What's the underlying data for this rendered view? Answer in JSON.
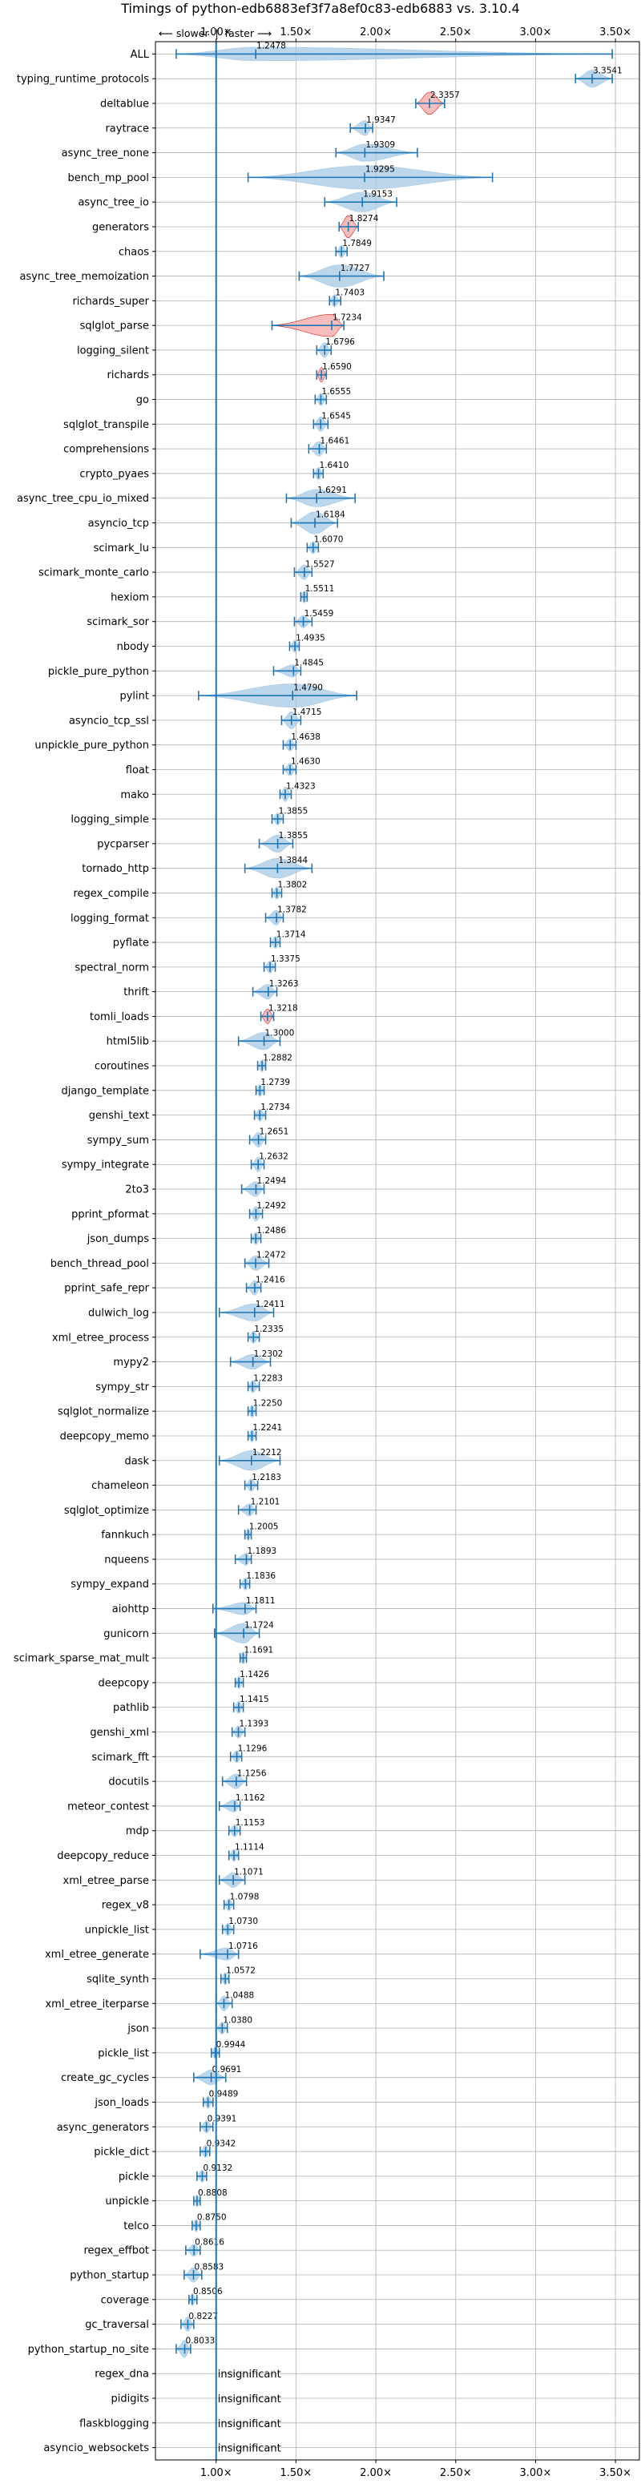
{
  "chart_data": {
    "type": "violin",
    "title": "Timings of python-edb6883ef3f7a8ef0c83-edb6883 vs. 3.10.4",
    "direction_note": "⟵ slower  |  faster ⟶",
    "x_ticks": [
      "1.00×",
      "1.50×",
      "2.00×",
      "2.50×",
      "3.00×",
      "3.50×"
    ],
    "x_tick_values": [
      1.0,
      1.5,
      2.0,
      2.5,
      3.0,
      3.5
    ],
    "xlim": [
      0.62,
      3.65
    ],
    "grid": true,
    "colors": {
      "faster": "#1f77b4",
      "violin": "#a6c8e4",
      "regression": "#f4a6a6",
      "regression_edge": "#d62728",
      "grid": "#b0b0b0"
    },
    "insignificant_label": "insignificant",
    "benchmarks": [
      {
        "name": "ALL",
        "value": 1.2478,
        "lo": 0.75,
        "hi": 3.48,
        "width": 0.55,
        "regression": false
      },
      {
        "name": "typing_runtime_protocols",
        "value": 3.3541,
        "lo": 3.25,
        "hi": 3.48,
        "width": 0.7,
        "regression": false
      },
      {
        "name": "deltablue",
        "value": 2.3357,
        "lo": 2.25,
        "hi": 2.43,
        "width": 0.9,
        "regression": true
      },
      {
        "name": "raytrace",
        "value": 1.9347,
        "lo": 1.84,
        "hi": 1.98,
        "width": 0.6,
        "regression": false
      },
      {
        "name": "async_tree_none",
        "value": 1.9309,
        "lo": 1.75,
        "hi": 2.26,
        "width": 0.7,
        "regression": false
      },
      {
        "name": "bench_mp_pool",
        "value": 1.9295,
        "lo": 1.2,
        "hi": 2.73,
        "width": 0.95,
        "regression": false
      },
      {
        "name": "async_tree_io",
        "value": 1.9153,
        "lo": 1.68,
        "hi": 2.13,
        "width": 0.8,
        "regression": false
      },
      {
        "name": "generators",
        "value": 1.8274,
        "lo": 1.77,
        "hi": 1.89,
        "width": 0.9,
        "regression": true
      },
      {
        "name": "chaos",
        "value": 1.7849,
        "lo": 1.75,
        "hi": 1.82,
        "width": 0.5,
        "regression": false
      },
      {
        "name": "async_tree_memoization",
        "value": 1.7727,
        "lo": 1.52,
        "hi": 2.05,
        "width": 0.9,
        "regression": false
      },
      {
        "name": "richards_super",
        "value": 1.7403,
        "lo": 1.71,
        "hi": 1.78,
        "width": 0.5,
        "regression": false
      },
      {
        "name": "sqlglot_parse",
        "value": 1.7234,
        "lo": 1.35,
        "hi": 1.8,
        "width": 0.9,
        "regression": true
      },
      {
        "name": "logging_silent",
        "value": 1.6796,
        "lo": 1.63,
        "hi": 1.72,
        "width": 0.6,
        "regression": false
      },
      {
        "name": "richards",
        "value": 1.659,
        "lo": 1.63,
        "hi": 1.69,
        "width": 0.6,
        "regression": true
      },
      {
        "name": "go",
        "value": 1.6555,
        "lo": 1.62,
        "hi": 1.69,
        "width": 0.5,
        "regression": false
      },
      {
        "name": "sqlglot_transpile",
        "value": 1.6545,
        "lo": 1.61,
        "hi": 1.7,
        "width": 0.6,
        "regression": false
      },
      {
        "name": "comprehensions",
        "value": 1.6461,
        "lo": 1.58,
        "hi": 1.69,
        "width": 0.6,
        "regression": false
      },
      {
        "name": "crypto_pyaes",
        "value": 1.641,
        "lo": 1.61,
        "hi": 1.67,
        "width": 0.5,
        "regression": false
      },
      {
        "name": "async_tree_cpu_io_mixed",
        "value": 1.6291,
        "lo": 1.44,
        "hi": 1.87,
        "width": 0.7,
        "regression": false
      },
      {
        "name": "asyncio_tcp",
        "value": 1.6184,
        "lo": 1.47,
        "hi": 1.76,
        "width": 0.9,
        "regression": false
      },
      {
        "name": "scimark_lu",
        "value": 1.607,
        "lo": 1.57,
        "hi": 1.64,
        "width": 0.5,
        "regression": false
      },
      {
        "name": "scimark_monte_carlo",
        "value": 1.5527,
        "lo": 1.49,
        "hi": 1.6,
        "width": 0.6,
        "regression": false
      },
      {
        "name": "hexiom",
        "value": 1.5511,
        "lo": 1.53,
        "hi": 1.57,
        "width": 0.5,
        "regression": false
      },
      {
        "name": "scimark_sor",
        "value": 1.5459,
        "lo": 1.49,
        "hi": 1.6,
        "width": 0.5,
        "regression": false
      },
      {
        "name": "nbody",
        "value": 1.4935,
        "lo": 1.46,
        "hi": 1.52,
        "width": 0.5,
        "regression": false
      },
      {
        "name": "pickle_pure_python",
        "value": 1.4845,
        "lo": 1.36,
        "hi": 1.53,
        "width": 0.5,
        "regression": false
      },
      {
        "name": "pylint",
        "value": 1.479,
        "lo": 0.89,
        "hi": 1.88,
        "width": 0.95,
        "regression": false
      },
      {
        "name": "asyncio_tcp_ssl",
        "value": 1.4715,
        "lo": 1.41,
        "hi": 1.53,
        "width": 0.7,
        "regression": false
      },
      {
        "name": "unpickle_pure_python",
        "value": 1.4638,
        "lo": 1.42,
        "hi": 1.5,
        "width": 0.5,
        "regression": false
      },
      {
        "name": "float",
        "value": 1.463,
        "lo": 1.42,
        "hi": 1.5,
        "width": 0.5,
        "regression": false
      },
      {
        "name": "mako",
        "value": 1.4323,
        "lo": 1.4,
        "hi": 1.47,
        "width": 0.6,
        "regression": false
      },
      {
        "name": "logging_simple",
        "value": 1.3855,
        "lo": 1.35,
        "hi": 1.42,
        "width": 0.5,
        "regression": false
      },
      {
        "name": "pycparser",
        "value": 1.3855,
        "lo": 1.27,
        "hi": 1.48,
        "width": 0.7,
        "regression": false
      },
      {
        "name": "tornado_http",
        "value": 1.3844,
        "lo": 1.18,
        "hi": 1.6,
        "width": 0.8,
        "regression": false
      },
      {
        "name": "regex_compile",
        "value": 1.3802,
        "lo": 1.35,
        "hi": 1.41,
        "width": 0.5,
        "regression": false
      },
      {
        "name": "logging_format",
        "value": 1.3782,
        "lo": 1.31,
        "hi": 1.42,
        "width": 0.6,
        "regression": false
      },
      {
        "name": "pyflate",
        "value": 1.3714,
        "lo": 1.34,
        "hi": 1.4,
        "width": 0.5,
        "regression": false
      },
      {
        "name": "spectral_norm",
        "value": 1.3375,
        "lo": 1.3,
        "hi": 1.37,
        "width": 0.5,
        "regression": false
      },
      {
        "name": "thrift",
        "value": 1.3263,
        "lo": 1.23,
        "hi": 1.38,
        "width": 0.6,
        "regression": false
      },
      {
        "name": "tomli_loads",
        "value": 1.3218,
        "lo": 1.28,
        "hi": 1.36,
        "width": 0.6,
        "regression": true
      },
      {
        "name": "html5lib",
        "value": 1.3,
        "lo": 1.14,
        "hi": 1.4,
        "width": 0.7,
        "regression": false
      },
      {
        "name": "coroutines",
        "value": 1.2882,
        "lo": 1.26,
        "hi": 1.31,
        "width": 0.5,
        "regression": false
      },
      {
        "name": "django_template",
        "value": 1.2739,
        "lo": 1.25,
        "hi": 1.3,
        "width": 0.5,
        "regression": false
      },
      {
        "name": "genshi_text",
        "value": 1.2734,
        "lo": 1.24,
        "hi": 1.31,
        "width": 0.5,
        "regression": false
      },
      {
        "name": "sympy_sum",
        "value": 1.2651,
        "lo": 1.21,
        "hi": 1.31,
        "width": 0.6,
        "regression": false
      },
      {
        "name": "sympy_integrate",
        "value": 1.2632,
        "lo": 1.22,
        "hi": 1.3,
        "width": 0.6,
        "regression": false
      },
      {
        "name": "2to3",
        "value": 1.2494,
        "lo": 1.16,
        "hi": 1.3,
        "width": 0.6,
        "regression": false
      },
      {
        "name": "pprint_pformat",
        "value": 1.2492,
        "lo": 1.21,
        "hi": 1.29,
        "width": 0.6,
        "regression": false
      },
      {
        "name": "json_dumps",
        "value": 1.2486,
        "lo": 1.22,
        "hi": 1.28,
        "width": 0.5,
        "regression": false
      },
      {
        "name": "bench_thread_pool",
        "value": 1.2472,
        "lo": 1.18,
        "hi": 1.33,
        "width": 0.6,
        "regression": false
      },
      {
        "name": "pprint_safe_repr",
        "value": 1.2416,
        "lo": 1.19,
        "hi": 1.28,
        "width": 0.6,
        "regression": false
      },
      {
        "name": "dulwich_log",
        "value": 1.2411,
        "lo": 1.02,
        "hi": 1.36,
        "width": 0.7,
        "regression": false
      },
      {
        "name": "xml_etree_process",
        "value": 1.2335,
        "lo": 1.2,
        "hi": 1.27,
        "width": 0.5,
        "regression": false
      },
      {
        "name": "mypy2",
        "value": 1.2302,
        "lo": 1.09,
        "hi": 1.34,
        "width": 0.6,
        "regression": false
      },
      {
        "name": "sympy_str",
        "value": 1.2283,
        "lo": 1.2,
        "hi": 1.27,
        "width": 0.5,
        "regression": false
      },
      {
        "name": "sqlglot_normalize",
        "value": 1.225,
        "lo": 1.2,
        "hi": 1.25,
        "width": 0.5,
        "regression": false
      },
      {
        "name": "deepcopy_memo",
        "value": 1.2241,
        "lo": 1.2,
        "hi": 1.25,
        "width": 0.5,
        "regression": false
      },
      {
        "name": "dask",
        "value": 1.2212,
        "lo": 1.02,
        "hi": 1.4,
        "width": 0.8,
        "regression": false
      },
      {
        "name": "chameleon",
        "value": 1.2183,
        "lo": 1.18,
        "hi": 1.26,
        "width": 0.5,
        "regression": false
      },
      {
        "name": "sqlglot_optimize",
        "value": 1.2101,
        "lo": 1.14,
        "hi": 1.25,
        "width": 0.5,
        "regression": false
      },
      {
        "name": "fannkuch",
        "value": 1.2005,
        "lo": 1.18,
        "hi": 1.22,
        "width": 0.5,
        "regression": false
      },
      {
        "name": "nqueens",
        "value": 1.1893,
        "lo": 1.12,
        "hi": 1.22,
        "width": 0.5,
        "regression": false
      },
      {
        "name": "sympy_expand",
        "value": 1.1836,
        "lo": 1.15,
        "hi": 1.21,
        "width": 0.5,
        "regression": false
      },
      {
        "name": "aiohttp",
        "value": 1.1811,
        "lo": 0.98,
        "hi": 1.25,
        "width": 0.5,
        "regression": false
      },
      {
        "name": "gunicorn",
        "value": 1.1724,
        "lo": 0.99,
        "hi": 1.27,
        "width": 0.8,
        "regression": false
      },
      {
        "name": "scimark_sparse_mat_mult",
        "value": 1.1691,
        "lo": 1.15,
        "hi": 1.19,
        "width": 0.5,
        "regression": false
      },
      {
        "name": "deepcopy",
        "value": 1.1426,
        "lo": 1.12,
        "hi": 1.17,
        "width": 0.5,
        "regression": false
      },
      {
        "name": "pathlib",
        "value": 1.1415,
        "lo": 1.11,
        "hi": 1.17,
        "width": 0.5,
        "regression": false
      },
      {
        "name": "genshi_xml",
        "value": 1.1393,
        "lo": 1.1,
        "hi": 1.18,
        "width": 0.5,
        "regression": false
      },
      {
        "name": "scimark_fft",
        "value": 1.1296,
        "lo": 1.09,
        "hi": 1.16,
        "width": 0.5,
        "regression": false
      },
      {
        "name": "docutils",
        "value": 1.1256,
        "lo": 1.04,
        "hi": 1.19,
        "width": 0.6,
        "regression": false
      },
      {
        "name": "meteor_contest",
        "value": 1.1162,
        "lo": 1.02,
        "hi": 1.15,
        "width": 0.5,
        "regression": false
      },
      {
        "name": "mdp",
        "value": 1.1153,
        "lo": 1.08,
        "hi": 1.15,
        "width": 0.5,
        "regression": false
      },
      {
        "name": "deepcopy_reduce",
        "value": 1.1114,
        "lo": 1.08,
        "hi": 1.14,
        "width": 0.5,
        "regression": false
      },
      {
        "name": "xml_etree_parse",
        "value": 1.1071,
        "lo": 1.02,
        "hi": 1.18,
        "width": 0.6,
        "regression": false
      },
      {
        "name": "regex_v8",
        "value": 1.0798,
        "lo": 1.05,
        "hi": 1.11,
        "width": 0.5,
        "regression": false
      },
      {
        "name": "unpickle_list",
        "value": 1.073,
        "lo": 1.04,
        "hi": 1.11,
        "width": 0.5,
        "regression": false
      },
      {
        "name": "xml_etree_generate",
        "value": 1.0716,
        "lo": 0.9,
        "hi": 1.14,
        "width": 0.5,
        "regression": false
      },
      {
        "name": "sqlite_synth",
        "value": 1.0572,
        "lo": 1.03,
        "hi": 1.08,
        "width": 0.5,
        "regression": false
      },
      {
        "name": "xml_etree_iterparse",
        "value": 1.0488,
        "lo": 1.0,
        "hi": 1.1,
        "width": 0.6,
        "regression": false
      },
      {
        "name": "json",
        "value": 1.038,
        "lo": 1.0,
        "hi": 1.07,
        "width": 0.5,
        "regression": false
      },
      {
        "name": "pickle_list",
        "value": 0.9944,
        "lo": 0.97,
        "hi": 1.02,
        "width": 0.5,
        "regression": false
      },
      {
        "name": "create_gc_cycles",
        "value": 0.9691,
        "lo": 0.86,
        "hi": 1.06,
        "width": 0.6,
        "regression": false
      },
      {
        "name": "json_loads",
        "value": 0.9489,
        "lo": 0.92,
        "hi": 0.98,
        "width": 0.5,
        "regression": false
      },
      {
        "name": "async_generators",
        "value": 0.9391,
        "lo": 0.9,
        "hi": 0.98,
        "width": 0.5,
        "regression": false
      },
      {
        "name": "pickle_dict",
        "value": 0.9342,
        "lo": 0.9,
        "hi": 0.96,
        "width": 0.5,
        "regression": false
      },
      {
        "name": "pickle",
        "value": 0.9132,
        "lo": 0.88,
        "hi": 0.94,
        "width": 0.5,
        "regression": false
      },
      {
        "name": "unpickle",
        "value": 0.8808,
        "lo": 0.86,
        "hi": 0.9,
        "width": 0.5,
        "regression": false
      },
      {
        "name": "telco",
        "value": 0.875,
        "lo": 0.85,
        "hi": 0.9,
        "width": 0.5,
        "regression": false
      },
      {
        "name": "regex_effbot",
        "value": 0.8616,
        "lo": 0.81,
        "hi": 0.9,
        "width": 0.5,
        "regression": false
      },
      {
        "name": "python_startup",
        "value": 0.8583,
        "lo": 0.8,
        "hi": 0.91,
        "width": 0.6,
        "regression": false
      },
      {
        "name": "coverage",
        "value": 0.8506,
        "lo": 0.83,
        "hi": 0.88,
        "width": 0.5,
        "regression": false
      },
      {
        "name": "gc_traversal",
        "value": 0.8227,
        "lo": 0.78,
        "hi": 0.86,
        "width": 0.6,
        "regression": false
      },
      {
        "name": "python_startup_no_site",
        "value": 0.8033,
        "lo": 0.75,
        "hi": 0.84,
        "width": 0.7,
        "regression": false
      },
      {
        "name": "regex_dna",
        "value": null,
        "insignificant": true
      },
      {
        "name": "pidigits",
        "value": null,
        "insignificant": true
      },
      {
        "name": "flaskblogging",
        "value": null,
        "insignificant": true
      },
      {
        "name": "asyncio_websockets",
        "value": null,
        "insignificant": true
      }
    ]
  }
}
